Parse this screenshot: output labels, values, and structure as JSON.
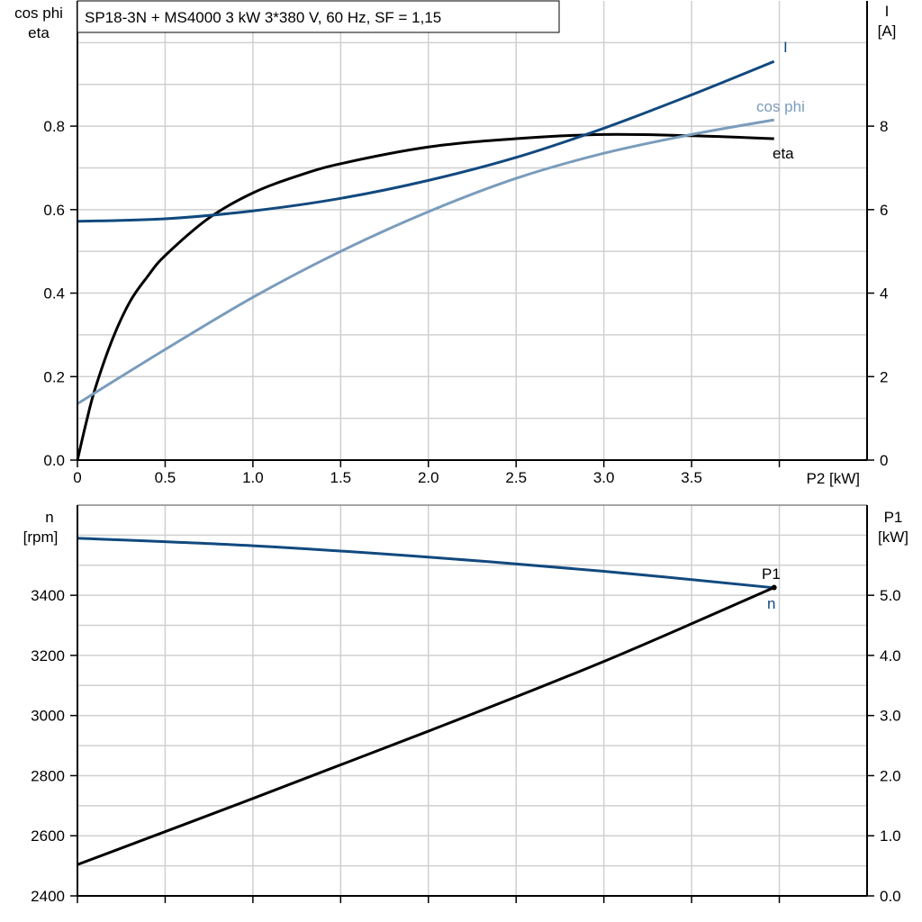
{
  "chart_data": [
    {
      "type": "line",
      "title": "SP18-3N + MS4000   3 kW   3*380 V, 60 Hz, SF = 1,15",
      "xlabel": "P2 [kW]",
      "ylabel_left": [
        "cos phi",
        "eta"
      ],
      "ylabel_right": [
        "I",
        "[A]"
      ],
      "xlim": [
        0,
        4.5
      ],
      "ylim_left": [
        0,
        1.1
      ],
      "ylim_right": [
        0,
        11
      ],
      "x_ticks": [
        "0",
        "0.5",
        "1.0",
        "1.5",
        "2.0",
        "2.5",
        "3.0",
        "3.5"
      ],
      "y_ticks_left": [
        "0.0",
        "0.2",
        "0.4",
        "0.6",
        "0.8"
      ],
      "y_ticks_right": [
        "0",
        "2",
        "4",
        "6",
        "8"
      ],
      "grid": true,
      "series": [
        {
          "name": "eta",
          "axis": "left",
          "color": "#000000",
          "x": [
            0,
            0.05,
            0.1,
            0.2,
            0.3,
            0.4,
            0.5,
            0.75,
            1.0,
            1.25,
            1.5,
            2.0,
            2.5,
            3.0,
            3.5,
            3.97
          ],
          "y": [
            0,
            0.09,
            0.17,
            0.29,
            0.38,
            0.44,
            0.49,
            0.58,
            0.64,
            0.68,
            0.71,
            0.75,
            0.77,
            0.78,
            0.777,
            0.77
          ]
        },
        {
          "name": "cos phi",
          "axis": "left",
          "color": "#7a9cbc",
          "x": [
            0,
            0.5,
            1.0,
            1.5,
            2.0,
            2.5,
            3.0,
            3.5,
            3.97
          ],
          "y": [
            0.135,
            0.265,
            0.39,
            0.5,
            0.595,
            0.675,
            0.735,
            0.78,
            0.815
          ]
        },
        {
          "name": "I",
          "axis": "right",
          "color": "#11497e",
          "x": [
            0,
            0.5,
            1.0,
            1.5,
            2.0,
            2.5,
            3.0,
            3.5,
            3.97
          ],
          "y": [
            5.72,
            5.78,
            5.97,
            6.27,
            6.7,
            7.25,
            7.95,
            8.75,
            9.55
          ]
        }
      ]
    },
    {
      "type": "line",
      "ylabel_left": [
        "n",
        "[rpm]"
      ],
      "ylabel_right": [
        "P1",
        "[kW]"
      ],
      "xlim": [
        0,
        4.5
      ],
      "ylim_left": [
        2400,
        3700
      ],
      "ylim_right": [
        0,
        6.5
      ],
      "y_ticks_left": [
        "2400",
        "2600",
        "2800",
        "3000",
        "3200",
        "3400"
      ],
      "y_ticks_right": [
        "0.0",
        "1.0",
        "2.0",
        "3.0",
        "4.0",
        "5.0"
      ],
      "grid": true,
      "series": [
        {
          "name": "n",
          "axis": "left",
          "color": "#11497e",
          "x": [
            0,
            1,
            2,
            3,
            3.97
          ],
          "y": [
            3590,
            3565,
            3527,
            3480,
            3425
          ]
        },
        {
          "name": "P1",
          "axis": "right",
          "color": "#000000",
          "x": [
            0,
            1,
            2,
            3,
            3.97
          ],
          "y": [
            0.52,
            1.62,
            2.74,
            3.9,
            5.13
          ]
        }
      ]
    }
  ]
}
